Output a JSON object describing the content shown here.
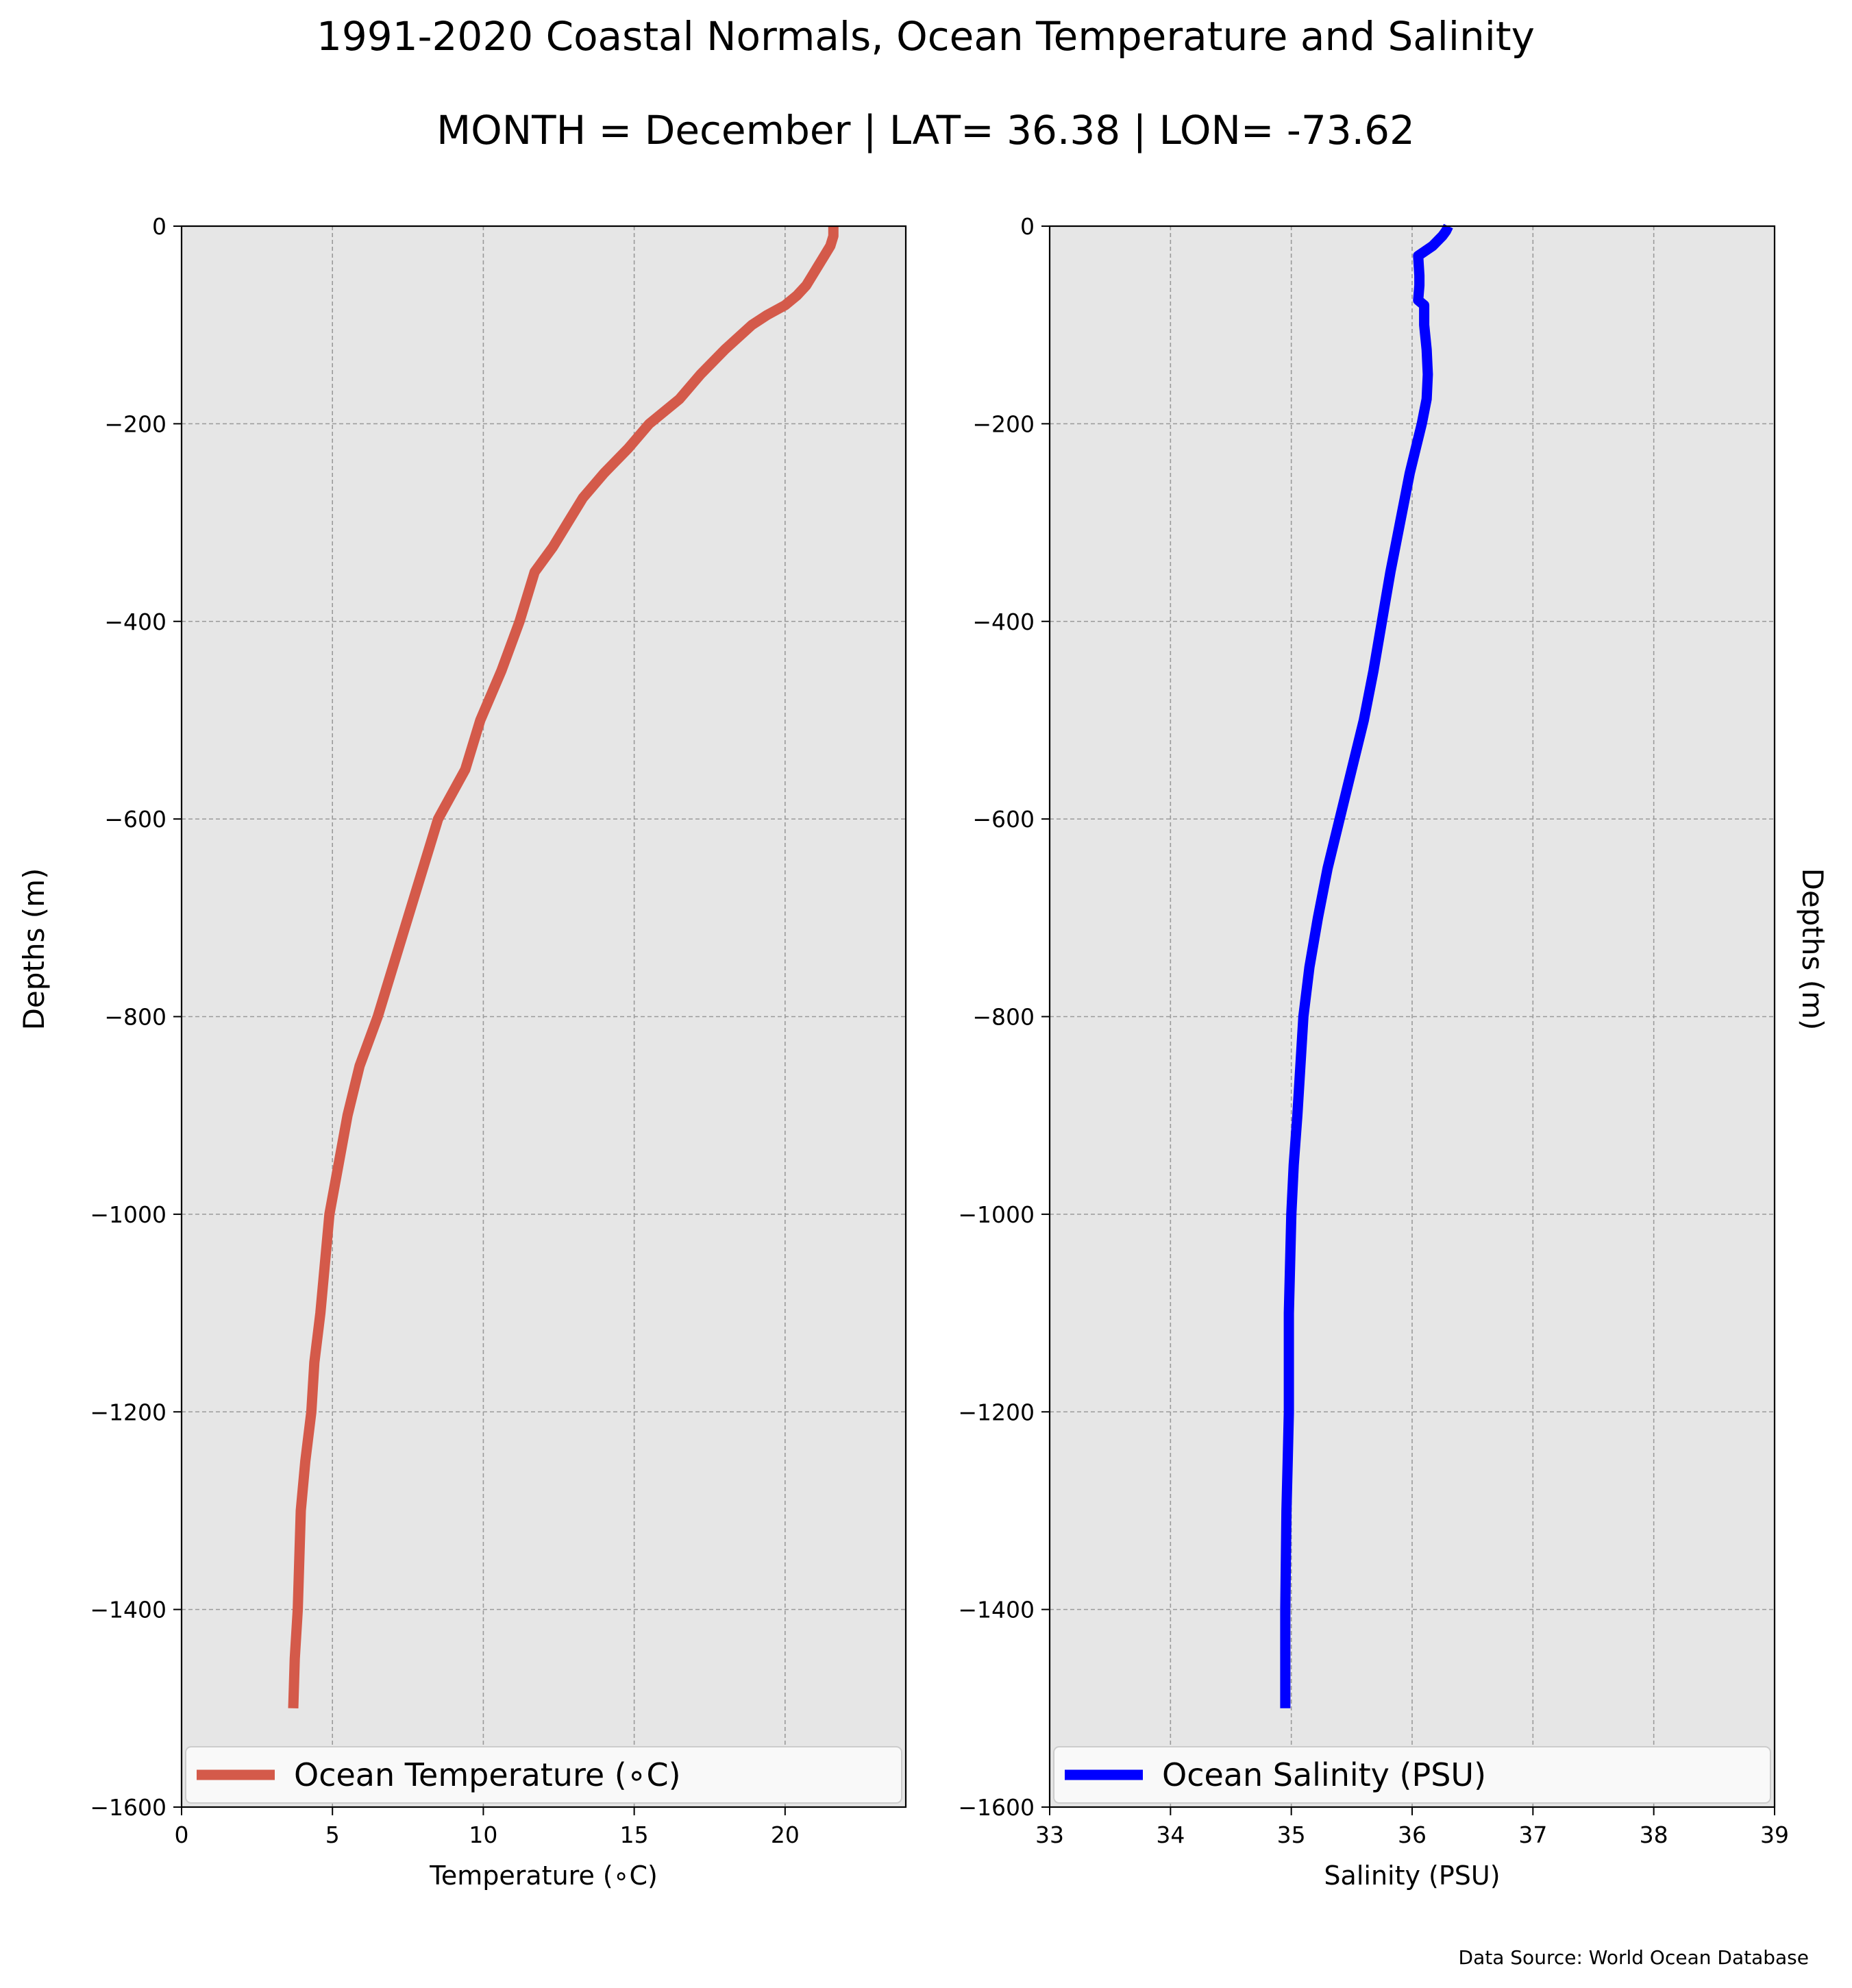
{
  "title": "1991-2020 Coastal Normals, Ocean Temperature and Salinity",
  "subtitle": "MONTH = December | LAT= 36.38 | LON= -73.62",
  "source": "Data Source: World Ocean Database",
  "chart_data": [
    {
      "type": "line",
      "xlabel": "Temperature (∘C)",
      "ylabel": "Depths (m)",
      "xlim": [
        0,
        24
      ],
      "ylim": [
        -1600,
        0
      ],
      "xticks": [
        0,
        5,
        10,
        15,
        20
      ],
      "yticks": [
        0,
        -200,
        -400,
        -600,
        -800,
        -1000,
        -1200,
        -1400,
        -1600
      ],
      "grid": true,
      "legend": "bottom",
      "series": [
        {
          "name": "Ocean Temperature (∘C)",
          "color": "#d45a4a",
          "x": [
            21.6,
            21.6,
            21.5,
            21.3,
            21.1,
            20.9,
            20.7,
            20.4,
            20.0,
            19.4,
            18.9,
            18.0,
            17.2,
            16.5,
            15.5,
            14.8,
            14.0,
            13.3,
            12.8,
            12.3,
            11.7,
            11.2,
            10.6,
            9.9,
            9.4,
            8.5,
            7.5,
            6.5,
            5.9,
            5.5,
            4.9,
            4.6,
            4.4,
            4.3,
            4.1,
            3.95,
            3.85,
            3.75,
            3.7
          ],
          "y": [
            0,
            -10,
            -20,
            -30,
            -40,
            -50,
            -60,
            -70,
            -80,
            -90,
            -100,
            -125,
            -150,
            -175,
            -200,
            -225,
            -250,
            -275,
            -300,
            -325,
            -350,
            -400,
            -450,
            -500,
            -550,
            -600,
            -700,
            -800,
            -850,
            -900,
            -1000,
            -1100,
            -1150,
            -1200,
            -1250,
            -1300,
            -1400,
            -1450,
            -1500
          ]
        }
      ]
    },
    {
      "type": "line",
      "xlabel": "Salinity (PSU)",
      "ylabel": "Depths (m)",
      "xlim": [
        33,
        39
      ],
      "ylim": [
        -1600,
        0
      ],
      "xticks": [
        33,
        34,
        35,
        36,
        37,
        38,
        39
      ],
      "yticks": [
        0,
        -200,
        -400,
        -600,
        -800,
        -1000,
        -1200,
        -1400,
        -1600
      ],
      "grid": true,
      "legend": "bottom",
      "series": [
        {
          "name": "Ocean Salinity (PSU)",
          "color": "#0000ff",
          "x": [
            36.3,
            36.28,
            36.25,
            36.17,
            36.05,
            36.06,
            36.06,
            36.05,
            36.1,
            36.1,
            36.12,
            36.13,
            36.12,
            36.08,
            36.03,
            35.98,
            35.9,
            35.82,
            35.75,
            35.68,
            35.6,
            35.5,
            35.4,
            35.3,
            35.22,
            35.15,
            35.1,
            35.05,
            35.02,
            35.0,
            34.99,
            34.98,
            34.98,
            34.97,
            34.96,
            34.95,
            34.95
          ],
          "y": [
            0,
            -5,
            -10,
            -20,
            -30,
            -50,
            -60,
            -75,
            -80,
            -100,
            -125,
            -150,
            -175,
            -200,
            -225,
            -250,
            -300,
            -350,
            -400,
            -450,
            -500,
            -550,
            -600,
            -650,
            -700,
            -750,
            -800,
            -900,
            -950,
            -1000,
            -1050,
            -1100,
            -1200,
            -1250,
            -1300,
            -1400,
            -1500
          ]
        }
      ]
    }
  ]
}
